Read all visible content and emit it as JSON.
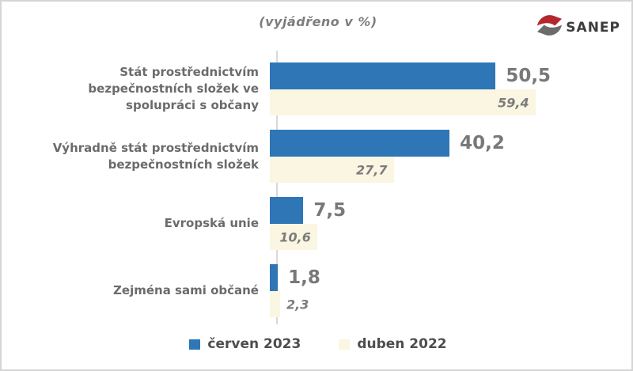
{
  "header": {
    "title": "(vyjádřeno v %)",
    "logo_text": "SANEP",
    "logo_red": "#b5272d",
    "logo_gray": "#6b6b6b"
  },
  "chart_data": {
    "type": "bar",
    "orientation": "horizontal",
    "title": "(vyjádřeno v %)",
    "categories": [
      "Stát prostřednictvím\nbezpečnostních složek ve\nspolupráci s občany",
      "Výhradně stát prostřednictvím\nbezpečnostních složek",
      "Evropská unie",
      "Zejména sami občané"
    ],
    "series": [
      {
        "name": "červen 2023",
        "color": "#2e76b6",
        "values": [
          50.5,
          40.2,
          7.5,
          1.8
        ]
      },
      {
        "name": "duben 2022",
        "color": "#faf6e2",
        "values": [
          59.4,
          27.7,
          10.6,
          2.3
        ]
      }
    ],
    "xlim": [
      0,
      62
    ],
    "grid": false,
    "legend_position": "bottom",
    "value_decimal_separator": ",",
    "axis_color": "#d9d9d9"
  }
}
